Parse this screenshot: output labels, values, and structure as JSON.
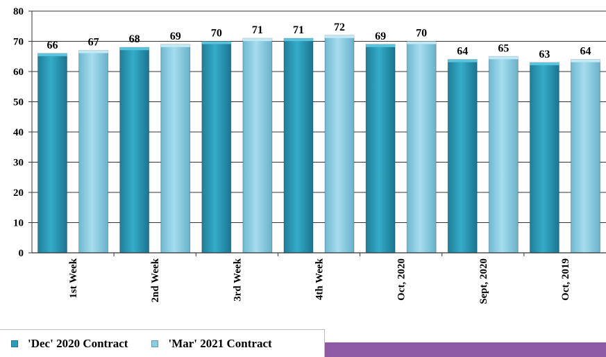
{
  "chart_data": {
    "type": "bar",
    "categories": [
      "1st Week",
      "2nd Week",
      "3rd Week",
      "4th Week",
      "Oct, 2020",
      "Sept, 2020",
      "Oct, 2019"
    ],
    "series": [
      {
        "name": "'Dec' 2020 Contract",
        "values": [
          66,
          68,
          70,
          71,
          69,
          64,
          63
        ],
        "color": "#2a9dbb"
      },
      {
        "name": "'Mar' 2021 Contract",
        "values": [
          67,
          69,
          71,
          72,
          70,
          65,
          64
        ],
        "color": "#8ccde3"
      }
    ],
    "yticks": [
      "0",
      "10",
      "20",
      "30",
      "40",
      "50",
      "60",
      "70",
      "80"
    ],
    "ylim": [
      0,
      80
    ],
    "grid": true,
    "legend_position": "bottom-left"
  },
  "colors": {
    "band": "#8e5aa5",
    "gridline": "#333333"
  }
}
